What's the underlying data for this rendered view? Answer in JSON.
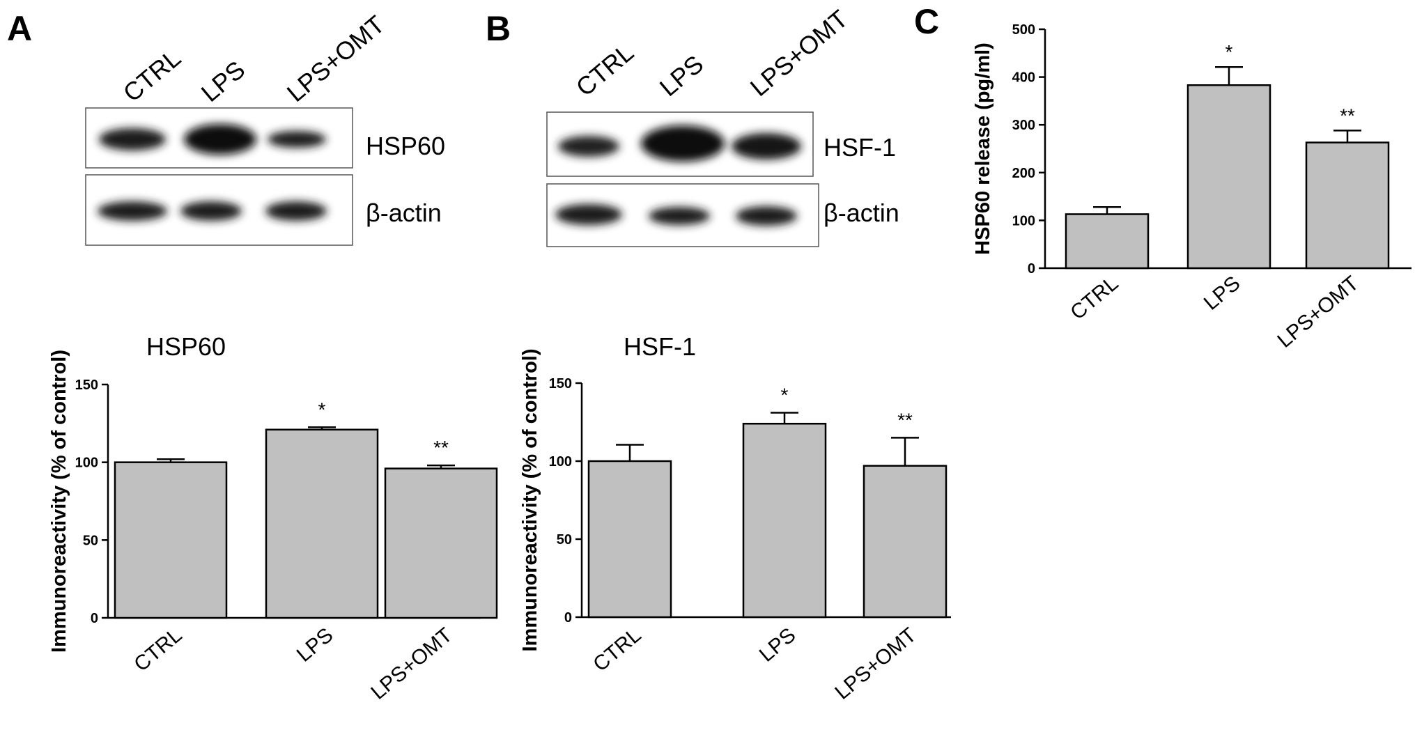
{
  "panel_letters": [
    "A",
    "B",
    "C"
  ],
  "blots": [
    {
      "lanes": [
        "CTRL",
        "LPS",
        "LPS+OMT"
      ],
      "rows": [
        {
          "protein": "HSP60",
          "intensity": [
            0.85,
            1.0,
            0.6
          ]
        },
        {
          "protein": "β-actin",
          "intensity": [
            0.8,
            0.8,
            0.8
          ]
        }
      ]
    },
    {
      "lanes": [
        "CTRL",
        "LPS",
        "LPS+OMT"
      ],
      "rows": [
        {
          "protein": "HSF-1",
          "intensity": [
            0.7,
            1.0,
            0.85
          ]
        },
        {
          "protein": "β-actin",
          "intensity": [
            0.85,
            0.8,
            0.8
          ]
        }
      ]
    }
  ],
  "colors": {
    "bar_fill": "#c0c0c0",
    "bar_stroke": "#000000",
    "band": "#1a1a1a"
  },
  "chart_data": [
    {
      "type": "bar",
      "title": "HSP60",
      "categories": [
        "CTRL",
        "LPS",
        "LPS+OMT"
      ],
      "values": [
        100,
        121,
        96
      ],
      "errors": [
        2,
        1.5,
        2
      ],
      "significance": [
        "",
        "*",
        "**"
      ],
      "ylabel": "Immunoreactivity (% of control)",
      "ylim": [
        0,
        150
      ],
      "yticks": [
        0,
        50,
        100,
        150
      ],
      "grid": false
    },
    {
      "type": "bar",
      "title": "HSF-1",
      "categories": [
        "CTRL",
        "LPS",
        "LPS+OMT"
      ],
      "values": [
        100,
        124,
        97
      ],
      "errors": [
        10.5,
        7,
        18
      ],
      "significance": [
        "",
        "*",
        "**"
      ],
      "ylabel": "Immunoreactivity (% of control)",
      "ylim": [
        0,
        150
      ],
      "yticks": [
        0,
        50,
        100,
        150
      ],
      "grid": false
    },
    {
      "type": "bar",
      "title": "",
      "categories": [
        "CTRL",
        "LPS",
        "LPS+OMT"
      ],
      "values": [
        113,
        383,
        263
      ],
      "errors": [
        15,
        38,
        25
      ],
      "significance": [
        "",
        "*",
        "**"
      ],
      "ylabel": "HSP60 release (pg/ml)",
      "ylim": [
        0,
        500
      ],
      "yticks": [
        0,
        100,
        200,
        300,
        400,
        500
      ],
      "grid": false
    }
  ]
}
